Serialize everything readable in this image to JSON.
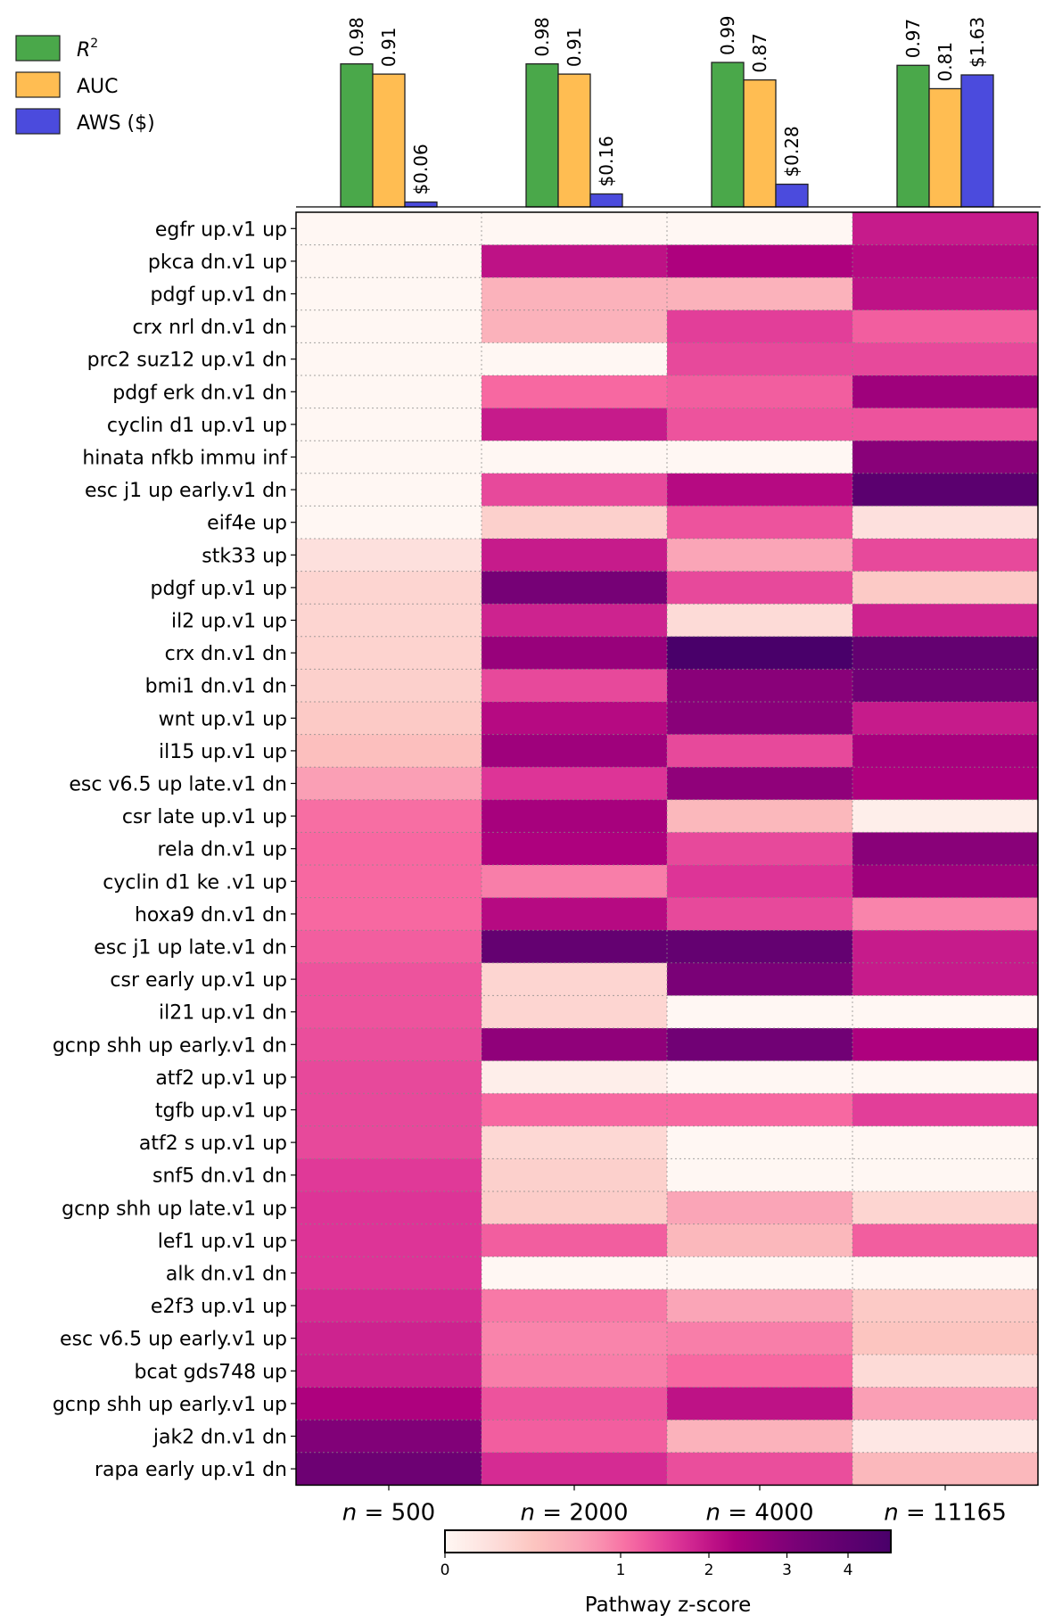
{
  "chart_data": {
    "type": "heatmap",
    "legend": {
      "entries": [
        {
          "label": "R",
          "sup": "2",
          "color": "#4aa84a"
        },
        {
          "label": "AUC",
          "color": "#ffbd52"
        },
        {
          "label": "AWS ($)",
          "color": "#4b4bdd"
        }
      ]
    },
    "bars": [
      {
        "r2": 0.98,
        "auc": 0.91,
        "aws": 0.06,
        "r2_label": "0.98",
        "auc_label": "0.91",
        "aws_label": "$0.06"
      },
      {
        "r2": 0.98,
        "auc": 0.91,
        "aws": 0.16,
        "r2_label": "0.98",
        "auc_label": "0.91",
        "aws_label": "$0.16"
      },
      {
        "r2": 0.99,
        "auc": 0.87,
        "aws": 0.28,
        "r2_label": "0.99",
        "auc_label": "0.87",
        "aws_label": "$0.28"
      },
      {
        "r2": 0.97,
        "auc": 0.81,
        "aws": 1.63,
        "r2_label": "0.97",
        "auc_label": "0.81",
        "aws_label": "$1.63"
      }
    ],
    "columns": [
      {
        "prefix": "n",
        "eq": "= ",
        "value": "500"
      },
      {
        "prefix": "n",
        "eq": "= ",
        "value": "2000"
      },
      {
        "prefix": "n",
        "eq": "= ",
        "value": "4000"
      },
      {
        "prefix": "n",
        "eq": "= ",
        "value": "11165"
      }
    ],
    "rows": [
      "egfr up.v1 up",
      "pkca dn.v1 up",
      "pdgf up.v1 dn",
      "crx nrl dn.v1 dn",
      "prc2 suz12 up.v1 dn",
      "pdgf erk dn.v1 dn",
      "cyclin d1 up.v1 up",
      "hinata nfkb immu inf",
      "esc j1 up early.v1 dn",
      "eif4e up",
      "stk33 up",
      "pdgf up.v1 up",
      "il2 up.v1 up",
      "crx dn.v1 dn",
      "bmi1 dn.v1 dn",
      "wnt up.v1 up",
      "il15 up.v1 up",
      "esc v6.5 up late.v1 dn",
      "csr late up.v1 up",
      "rela dn.v1 up",
      "cyclin d1 ke .v1 up",
      "hoxa9 dn.v1 dn",
      "esc j1 up late.v1 dn",
      "csr early up.v1 up",
      "il21 up.v1 dn",
      "gcnp shh up early.v1 dn",
      "atf2 up.v1 up",
      "tgfb up.v1 up",
      "atf2 s up.v1 up",
      "snf5 dn.v1 dn",
      "gcnp shh up late.v1 up",
      "lef1 up.v1 up",
      "alk dn.v1 dn",
      "e2f3 up.v1 up",
      "esc v6.5 up early.v1 up",
      "bcat gds748 up",
      "gcnp shh up early.v1 up",
      "jak2 dn.v1 dn",
      "rapa early up.v1 dn"
    ],
    "values": [
      [
        0.0,
        0.0,
        0.0,
        2.9
      ],
      [
        0.0,
        3.0,
        3.2,
        3.1
      ],
      [
        0.0,
        1.3,
        1.3,
        3.0
      ],
      [
        0.0,
        1.3,
        2.5,
        2.2
      ],
      [
        0.0,
        0.0,
        2.4,
        2.4
      ],
      [
        0.0,
        2.1,
        2.2,
        3.4
      ],
      [
        0.0,
        2.9,
        2.3,
        2.3
      ],
      [
        0.0,
        0.0,
        0.0,
        3.7
      ],
      [
        0.0,
        2.4,
        3.1,
        4.6
      ],
      [
        0.0,
        0.8,
        2.3,
        0.5
      ],
      [
        0.5,
        2.9,
        1.5,
        2.4
      ],
      [
        0.7,
        4.0,
        2.4,
        0.9
      ],
      [
        0.7,
        2.8,
        0.6,
        2.8
      ],
      [
        0.75,
        3.5,
        5.0,
        4.4
      ],
      [
        0.8,
        2.4,
        3.7,
        4.1
      ],
      [
        0.9,
        3.1,
        3.7,
        2.9
      ],
      [
        1.1,
        3.4,
        2.4,
        3.3
      ],
      [
        1.6,
        2.6,
        3.6,
        3.2
      ],
      [
        2.05,
        3.3,
        1.2,
        0.2
      ],
      [
        2.1,
        3.2,
        2.4,
        3.7
      ],
      [
        2.1,
        1.9,
        2.6,
        3.4
      ],
      [
        2.1,
        3.1,
        2.4,
        1.85
      ],
      [
        2.2,
        4.4,
        4.4,
        2.9
      ],
      [
        2.3,
        0.7,
        3.9,
        2.9
      ],
      [
        2.3,
        0.7,
        0.0,
        0.0
      ],
      [
        2.35,
        3.6,
        4.1,
        3.2
      ],
      [
        2.4,
        0.2,
        0.0,
        0.0
      ],
      [
        2.4,
        2.1,
        2.1,
        2.5
      ],
      [
        2.4,
        0.65,
        0.0,
        0.0
      ],
      [
        2.55,
        0.8,
        0.0,
        0.0
      ],
      [
        2.6,
        0.85,
        1.5,
        0.7
      ],
      [
        2.6,
        2.2,
        1.2,
        2.2
      ],
      [
        2.6,
        0.0,
        0.0,
        0.0
      ],
      [
        2.7,
        1.95,
        1.5,
        0.9
      ],
      [
        2.8,
        1.85,
        1.9,
        1.0
      ],
      [
        2.85,
        1.9,
        2.1,
        0.6
      ],
      [
        3.2,
        2.3,
        3.0,
        1.6
      ],
      [
        3.8,
        2.2,
        1.3,
        0.35
      ],
      [
        4.2,
        2.7,
        2.35,
        1.2
      ]
    ],
    "colorbar": {
      "label": "Pathway z-score",
      "ticks": [
        {
          "value": 0,
          "label": "0"
        },
        {
          "value": 1,
          "label": "1"
        },
        {
          "value": 2,
          "label": "2"
        },
        {
          "value": 3,
          "label": "3"
        },
        {
          "value": 4,
          "label": "4"
        }
      ],
      "range": [
        0,
        5
      ]
    }
  }
}
